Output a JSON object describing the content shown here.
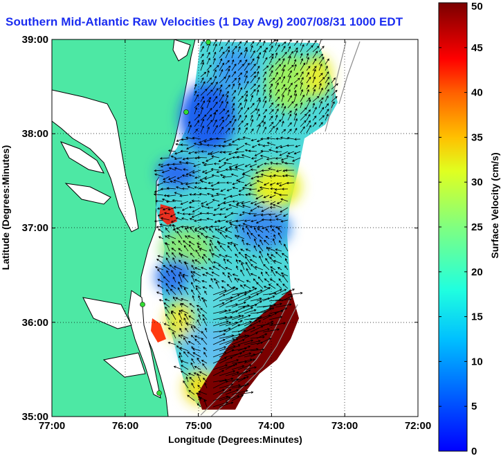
{
  "title": "Southern Mid-Atlantic Raw Velocities (1 Day Avg) 2007/08/31 1000 EDT",
  "map": {
    "x_label": "Longitude (Degrees:Minutes)",
    "y_label": "Latitude (Degrees:Minutes)",
    "x_ticks": [
      "77:00",
      "76:00",
      "75:00",
      "74:00",
      "73:00",
      "72:00"
    ],
    "y_ticks": [
      "39:00",
      "38:00",
      "37:00",
      "36:00",
      "35:00"
    ],
    "grid": "dotted",
    "land_color": "#4de8a4",
    "coastline_color": "#000000",
    "bathymetry_color": "#8c8c8c",
    "station_color": "#33dd33"
  },
  "colorbar": {
    "label": "Surface Velocity (cm/s)",
    "ticks": [
      "50",
      "45",
      "40",
      "35",
      "30",
      "25",
      "20",
      "15",
      "10",
      "5",
      "0"
    ],
    "min": 0,
    "max": 50,
    "colormap": "jet"
  },
  "chart_data": {
    "type": "heatmap",
    "title": "Southern Mid-Atlantic Raw Velocities (1 Day Avg) 2007/08/31 1000 EDT",
    "xlabel": "Longitude (Degrees:Minutes)",
    "ylabel": "Latitude (Degrees:Minutes)",
    "xlim": [
      -77,
      -72
    ],
    "ylim": [
      35,
      39
    ],
    "value_label": "Surface Velocity (cm/s)",
    "value_range": [
      0,
      50
    ],
    "regions": [
      {
        "name": "",
        "lon": -74.4,
        "lat": 38.2,
        "speed": 8
      },
      {
        "name": "",
        "lon": -74.0,
        "lat": 37.2,
        "speed": 20
      },
      {
        "name": "",
        "lon": -73.8,
        "lat": 37.2,
        "speed": 28
      },
      {
        "name": "",
        "lon": -75.4,
        "lat": 37.1,
        "speed": 38
      },
      {
        "name": "",
        "lon": -74.4,
        "lat": 36.8,
        "speed": 10
      },
      {
        "name": "",
        "lon": -75.2,
        "lat": 36.3,
        "speed": 9
      },
      {
        "name": "",
        "lon": -75.5,
        "lat": 35.9,
        "speed": 40
      },
      {
        "name": "",
        "lon": -74.2,
        "lat": 35.5,
        "speed": 48
      }
    ]
  }
}
